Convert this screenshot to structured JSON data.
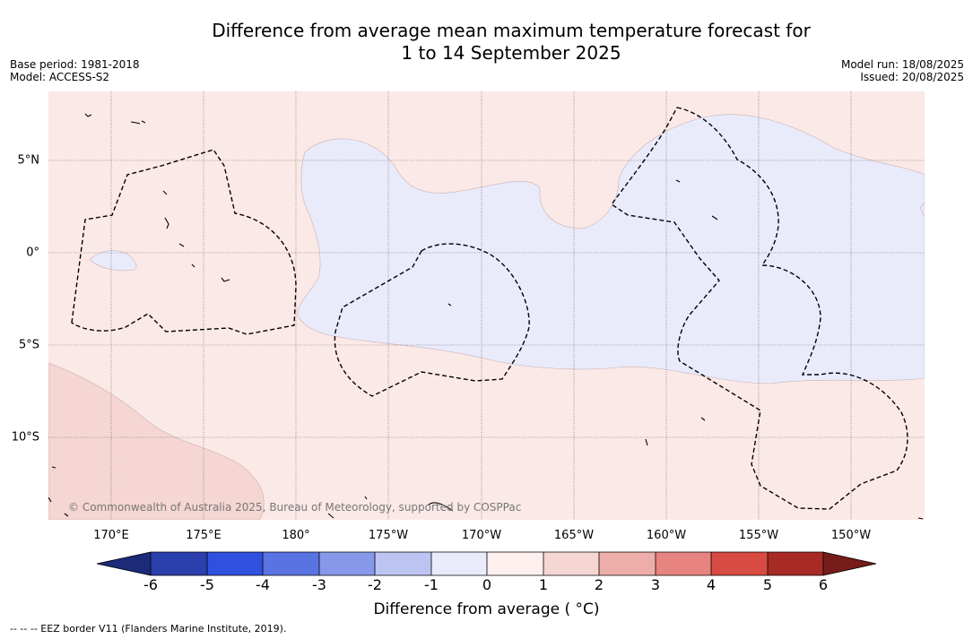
{
  "title": {
    "line1": "Difference from average mean maximum temperature forecast for",
    "line2": "1 to 14 September 2025"
  },
  "meta_left": {
    "base_period": "Base period: 1981-2018",
    "model": "Model: ACCESS-S2"
  },
  "meta_right": {
    "model_run": "Model run: 18/08/2025",
    "issued": "Issued: 20/08/2025"
  },
  "map": {
    "copyright": "© Commonwealth of Australia 2025, Bureau of Meteorology, supported by COSPPac",
    "longitude_labels": [
      "170°E",
      "175°E",
      "180°",
      "175°W",
      "170°W",
      "165°W",
      "160°W",
      "155°W",
      "150°W"
    ],
    "latitude_labels": [
      "5°N",
      "0°",
      "5°S",
      "10°S"
    ],
    "colors": {
      "ocean_base": "#fbe9e7",
      "cool_anomaly": "#e9ebfb",
      "warm_anomaly": "#f5d6d3",
      "gridline": "#555555",
      "eez_border": "#000000"
    }
  },
  "colorbar": {
    "title": "Difference from average ( °C)",
    "tick_labels": [
      "-6",
      "-5",
      "-4",
      "-3",
      "-2",
      "-1",
      "0",
      "1",
      "2",
      "3",
      "4",
      "5",
      "6"
    ],
    "colors": [
      "#1c2a7a",
      "#2b3fad",
      "#3050df",
      "#5a73e3",
      "#8798ea",
      "#bcc4f2",
      "#e9ebfb",
      "#fdf0ef",
      "#f5d6d3",
      "#edaeaa",
      "#e78380",
      "#d84b42",
      "#a82a25",
      "#761c1a"
    ]
  },
  "footnote": "--  --  -- EEZ border V11 (Flanders Marine Institute, 2019)."
}
